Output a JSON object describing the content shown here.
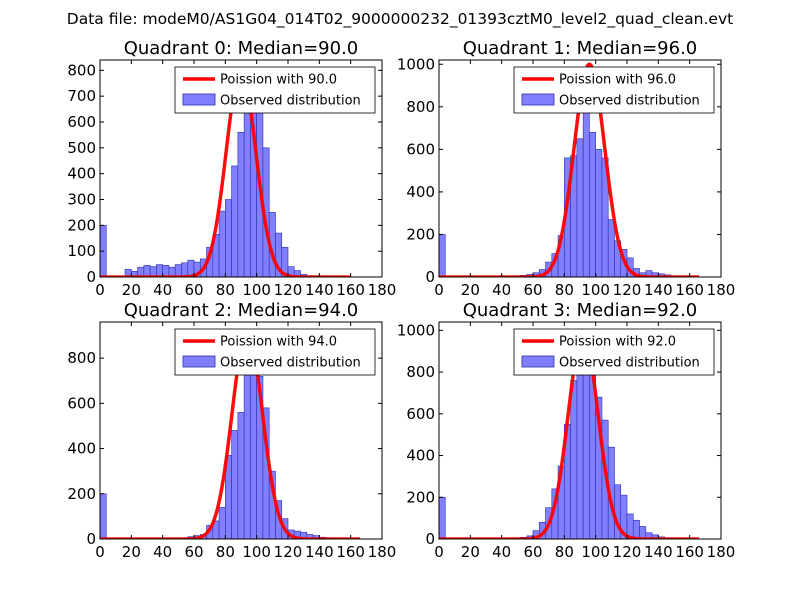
{
  "figure": {
    "suptitle": "Data file: modeM0/AS1G04_014T02_9000000232_01393cztM0_level2_quad_clean.evt"
  },
  "colors": {
    "hist_fill": "#8080ff",
    "hist_edge": "#2c2cb0",
    "fit_line": "#ff0000",
    "axes": "#000000",
    "background": "#ffffff"
  },
  "chart_data": [
    {
      "type": "bar",
      "title": "Quadrant 0: Median=90.0",
      "median": 90.0,
      "xlim": [
        0,
        180
      ],
      "ylim": [
        0,
        840
      ],
      "xticks": [
        0,
        20,
        40,
        60,
        80,
        100,
        120,
        140,
        160,
        180
      ],
      "yticks": [
        0,
        100,
        200,
        300,
        400,
        500,
        600,
        700,
        800
      ],
      "bin_width": 4,
      "bins_left": [
        0,
        4,
        8,
        12,
        16,
        20,
        24,
        28,
        32,
        36,
        40,
        44,
        48,
        52,
        56,
        60,
        64,
        68,
        72,
        76,
        80,
        84,
        88,
        92,
        96,
        100,
        104,
        108,
        112,
        116,
        120,
        124,
        128,
        132,
        136,
        140,
        144,
        148,
        152,
        156,
        160
      ],
      "counts": [
        200,
        0,
        0,
        0,
        30,
        22,
        38,
        45,
        40,
        48,
        45,
        38,
        48,
        55,
        65,
        58,
        70,
        115,
        165,
        255,
        300,
        430,
        560,
        640,
        800,
        640,
        500,
        250,
        170,
        115,
        40,
        25,
        10,
        5,
        3,
        2,
        1,
        0,
        0,
        0,
        0
      ],
      "fit": {
        "label": "Poission with 90.0",
        "mean": 90.0,
        "peak": 800,
        "x_range": [
          0,
          160
        ]
      },
      "legend": {
        "fit_label": "Poission with 90.0",
        "hist_label": "Observed distribution",
        "placement": "top-right"
      }
    },
    {
      "type": "bar",
      "title": "Quadrant 1: Median=96.0",
      "median": 96.0,
      "xlim": [
        0,
        180
      ],
      "ylim": [
        0,
        1020
      ],
      "xticks": [
        0,
        20,
        40,
        60,
        80,
        100,
        120,
        140,
        160,
        180
      ],
      "yticks": [
        0,
        200,
        400,
        600,
        800,
        1000
      ],
      "bin_width": 4,
      "bins_left": [
        0,
        4,
        8,
        12,
        16,
        20,
        24,
        28,
        32,
        36,
        40,
        44,
        48,
        52,
        56,
        60,
        64,
        68,
        72,
        76,
        80,
        84,
        88,
        92,
        96,
        100,
        104,
        108,
        112,
        116,
        120,
        124,
        128,
        132,
        136,
        140,
        144,
        148,
        152,
        156,
        160,
        164
      ],
      "counts": [
        200,
        0,
        0,
        0,
        0,
        0,
        0,
        0,
        0,
        0,
        0,
        0,
        5,
        8,
        12,
        20,
        35,
        70,
        110,
        195,
        560,
        570,
        650,
        900,
        680,
        600,
        560,
        270,
        170,
        130,
        90,
        40,
        20,
        30,
        20,
        15,
        10,
        5,
        3,
        2,
        1,
        0
      ],
      "fit": {
        "label": "Poission with 96.0",
        "mean": 96.0,
        "peak": 1000,
        "x_range": [
          0,
          166
        ]
      },
      "legend": {
        "fit_label": "Poission with 96.0",
        "hist_label": "Observed distribution",
        "placement": "top-right"
      }
    },
    {
      "type": "bar",
      "title": "Quadrant 2: Median=94.0",
      "median": 94.0,
      "xlim": [
        0,
        180
      ],
      "ylim": [
        0,
        960
      ],
      "xticks": [
        0,
        20,
        40,
        60,
        80,
        100,
        120,
        140,
        160,
        180
      ],
      "yticks": [
        0,
        200,
        400,
        600,
        800
      ],
      "bin_width": 4,
      "bins_left": [
        0,
        4,
        8,
        12,
        16,
        20,
        24,
        28,
        32,
        36,
        40,
        44,
        48,
        52,
        56,
        60,
        64,
        68,
        72,
        76,
        80,
        84,
        88,
        92,
        96,
        100,
        104,
        108,
        112,
        116,
        120,
        124,
        128,
        132,
        136,
        140,
        144,
        148,
        152,
        156,
        160
      ],
      "counts": [
        200,
        0,
        0,
        0,
        0,
        0,
        0,
        0,
        0,
        0,
        0,
        0,
        0,
        0,
        10,
        15,
        20,
        60,
        80,
        140,
        370,
        480,
        560,
        880,
        900,
        720,
        580,
        300,
        170,
        90,
        40,
        35,
        30,
        20,
        15,
        8,
        4,
        2,
        1,
        0,
        0
      ],
      "fit": {
        "label": "Poission with 94.0",
        "mean": 94.0,
        "peak": 920,
        "x_range": [
          0,
          166
        ]
      },
      "legend": {
        "fit_label": "Poission with 94.0",
        "hist_label": "Observed distribution",
        "placement": "top-right"
      }
    },
    {
      "type": "bar",
      "title": "Quadrant 3: Median=92.0",
      "median": 92.0,
      "xlim": [
        0,
        180
      ],
      "ylim": [
        0,
        1040
      ],
      "xticks": [
        0,
        20,
        40,
        60,
        80,
        100,
        120,
        140,
        160,
        180
      ],
      "yticks": [
        0,
        200,
        400,
        600,
        800,
        1000
      ],
      "bin_width": 4,
      "bins_left": [
        0,
        4,
        8,
        12,
        16,
        20,
        24,
        28,
        32,
        36,
        40,
        44,
        48,
        52,
        56,
        60,
        64,
        68,
        72,
        76,
        80,
        84,
        88,
        92,
        96,
        100,
        104,
        108,
        112,
        116,
        120,
        124,
        128,
        132,
        136,
        140,
        144,
        148,
        152,
        156,
        160,
        164
      ],
      "counts": [
        200,
        0,
        0,
        0,
        0,
        0,
        0,
        0,
        0,
        0,
        0,
        0,
        5,
        8,
        15,
        40,
        80,
        150,
        240,
        350,
        550,
        760,
        800,
        940,
        820,
        680,
        570,
        440,
        260,
        210,
        120,
        90,
        60,
        30,
        20,
        10,
        5,
        2,
        1,
        0,
        0,
        0
      ],
      "fit": {
        "label": "Poission with 92.0",
        "mean": 92.0,
        "peak": 980,
        "x_range": [
          0,
          166
        ]
      },
      "legend": {
        "fit_label": "Poission with 92.0",
        "hist_label": "Observed distribution",
        "placement": "top-right"
      }
    }
  ]
}
